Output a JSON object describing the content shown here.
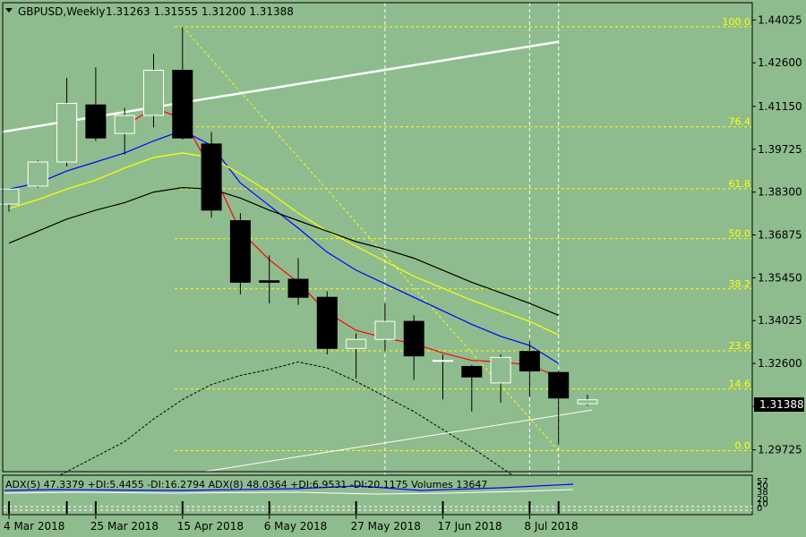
{
  "header": {
    "symbol": "GBPUSD,Weekly",
    "ohlc": "1.31263 1.31555 1.31200 1.31388"
  },
  "subwindow": {
    "label": "ADX(5) 47.3379 +DI:5.4455 -DI:16.2794  ADX(8) 48.0364 +DI:6.9531 -DI:20.1175  Volumes 13647",
    "scale_labels": [
      "57",
      "50",
      "38",
      "20",
      "10",
      "0"
    ]
  },
  "colors": {
    "background": "#8fbc8f",
    "grid": "#ffffff",
    "fib": "#ffff00",
    "bear_body": "#000000",
    "bull_body": "#8fbc8f",
    "ma_fast": "#ff0000",
    "ma_mid": "#0000ff",
    "ma_slow": "#ffff00",
    "ma_long": "#000000",
    "trendline": "#ffffff"
  },
  "chart_data": {
    "type": "candlestick",
    "timeframe": "Weekly",
    "current_price": "1.31388",
    "y_ticks": [
      "1.44025",
      "1.42600",
      "1.41150",
      "1.39725",
      "1.38300",
      "1.36875",
      "1.35450",
      "1.34025",
      "1.32600",
      "1.31175",
      "1.29725"
    ],
    "ylim": [
      1.29,
      1.446
    ],
    "x_labels": [
      "4 Mar 2018",
      "25 Mar 2018",
      "15 Apr 2018",
      "6 May 2018",
      "27 May 2018",
      "17 Jun 2018",
      "8 Jul 2018"
    ],
    "x_label_index": [
      0,
      3,
      6,
      9,
      12,
      15,
      18
    ],
    "candles": [
      {
        "o": 1.379,
        "h": 1.3835,
        "l": 1.3765,
        "c": 1.384
      },
      {
        "o": 1.385,
        "h": 1.3935,
        "l": 1.3845,
        "c": 1.393
      },
      {
        "o": 1.393,
        "h": 1.421,
        "l": 1.3915,
        "c": 1.4125
      },
      {
        "o": 1.412,
        "h": 1.4245,
        "l": 1.4,
        "c": 1.401
      },
      {
        "o": 1.4025,
        "h": 1.411,
        "l": 1.3955,
        "c": 1.4085
      },
      {
        "o": 1.4085,
        "h": 1.429,
        "l": 1.4045,
        "c": 1.4235
      },
      {
        "o": 1.4235,
        "h": 1.438,
        "l": 1.4005,
        "c": 1.401
      },
      {
        "o": 1.399,
        "h": 1.403,
        "l": 1.3745,
        "c": 1.377
      },
      {
        "o": 1.3735,
        "h": 1.376,
        "l": 1.349,
        "c": 1.353
      },
      {
        "o": 1.3535,
        "h": 1.362,
        "l": 1.346,
        "c": 1.353
      },
      {
        "o": 1.354,
        "h": 1.361,
        "l": 1.3455,
        "c": 1.348
      },
      {
        "o": 1.348,
        "h": 1.35,
        "l": 1.329,
        "c": 1.331
      },
      {
        "o": 1.331,
        "h": 1.336,
        "l": 1.321,
        "c": 1.334
      },
      {
        "o": 1.334,
        "h": 1.346,
        "l": 1.33,
        "c": 1.34
      },
      {
        "o": 1.34,
        "h": 1.342,
        "l": 1.3205,
        "c": 1.3285
      },
      {
        "o": 1.327,
        "h": 1.329,
        "l": 1.314,
        "c": 1.327
      },
      {
        "o": 1.325,
        "h": 1.3255,
        "l": 1.31,
        "c": 1.3215
      },
      {
        "o": 1.3195,
        "h": 1.329,
        "l": 1.313,
        "c": 1.328
      },
      {
        "o": 1.33,
        "h": 1.3335,
        "l": 1.315,
        "c": 1.3235
      },
      {
        "o": 1.323,
        "h": 1.3235,
        "l": 1.299,
        "c": 1.3145
      },
      {
        "o": 1.3126,
        "h": 1.3156,
        "l": 1.312,
        "c": 1.3139
      }
    ],
    "moving_averages": [
      {
        "color": "#ff0000",
        "values": [
          null,
          null,
          null,
          null,
          1.405,
          1.411,
          1.4075,
          1.3905,
          1.37,
          1.3605,
          1.353,
          1.343,
          1.337,
          1.3345,
          1.3325,
          1.3295,
          1.327,
          1.3265,
          1.3255,
          1.3215
        ]
      },
      {
        "color": "#0000ff",
        "values": [
          1.384,
          1.386,
          1.39,
          1.393,
          1.396,
          1.4,
          1.4035,
          1.3985,
          1.386,
          1.3785,
          1.371,
          1.363,
          1.357,
          1.3525,
          1.348,
          1.3435,
          1.339,
          1.335,
          1.332,
          1.326
        ]
      },
      {
        "color": "#ffff00",
        "values": [
          1.3775,
          1.3805,
          1.384,
          1.387,
          1.391,
          1.3945,
          1.396,
          1.3945,
          1.389,
          1.383,
          1.376,
          1.37,
          1.365,
          1.36,
          1.355,
          1.351,
          1.347,
          1.3435,
          1.34,
          1.3355
        ]
      },
      {
        "color": "#000000",
        "values": [
          1.366,
          1.37,
          1.374,
          1.377,
          1.3795,
          1.383,
          1.3845,
          1.384,
          1.381,
          1.377,
          1.3735,
          1.37,
          1.3665,
          1.364,
          1.361,
          1.357,
          1.353,
          1.3495,
          1.346,
          1.342
        ]
      }
    ],
    "envelope_lower": [
      1.28,
      1.285,
      1.29,
      1.295,
      1.3,
      1.3075,
      1.314,
      1.319,
      1.322,
      1.324,
      1.3265,
      1.3245,
      1.32,
      1.315,
      1.31,
      1.304,
      1.298,
      1.2915,
      1.285,
      1.278
    ],
    "fibonacci": [
      {
        "label": "100.0",
        "price": 1.438
      },
      {
        "label": "76.4",
        "price": 1.4047
      },
      {
        "label": "61.8",
        "price": 1.3841
      },
      {
        "label": "50.0",
        "price": 1.3675
      },
      {
        "label": "38.2",
        "price": 1.3508
      },
      {
        "label": "23.6",
        "price": 1.3302
      },
      {
        "label": "14.6",
        "price": 1.3175
      },
      {
        "label": "0.0",
        "price": 1.297
      }
    ],
    "trendlines": [
      {
        "from": {
          "i": -0.25,
          "p": 1.403
        },
        "to": {
          "i": 19.0,
          "p": 1.433
        }
      },
      {
        "from": {
          "i": 6.75,
          "p": 1.29
        },
        "to": {
          "i": 20.15,
          "p": 1.3105
        }
      }
    ],
    "fib_diagonal": {
      "from": {
        "i": 6,
        "p": 1.438
      },
      "to": {
        "i": 19,
        "p": 1.297
      }
    },
    "vertical_grid_index": [
      13,
      18,
      19
    ]
  }
}
